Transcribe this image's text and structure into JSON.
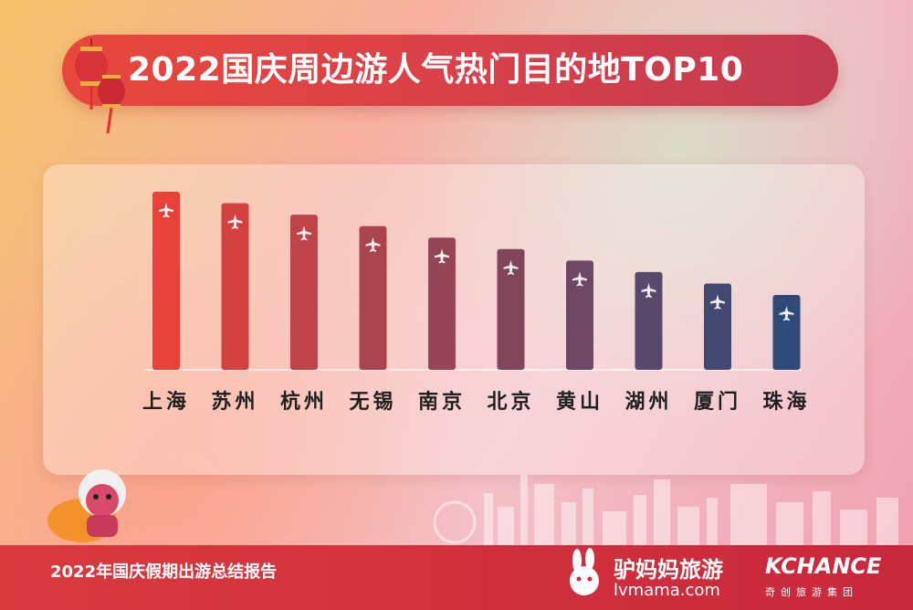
{
  "title": "2022国庆周边游人气热门目的地TOP10",
  "footer": {
    "report_title": "2022年国庆假期出游总结报告",
    "brand1_name": "驴妈妈旅游",
    "brand1_url": "lvmama.com",
    "brand2_name": "KCHANCE",
    "brand2_sub": "奇创旅游集团"
  },
  "colors": {
    "bar_start": "#e8413a",
    "bar_end": "#2f4a78",
    "banner": "#e0443f",
    "footer": "#d12f3d"
  },
  "icons": {
    "bar_icon": "airplane-icon",
    "decoration": "lantern-icon",
    "mascot": "lion-dance-mascot-icon",
    "brand_logo": "rabbit-logo-icon"
  },
  "chart_data": {
    "type": "bar",
    "title": "2022国庆周边游人气热门目的地TOP10",
    "categories": [
      "上海",
      "苏州",
      "杭州",
      "无锡",
      "南京",
      "北京",
      "黄山",
      "湖州",
      "厦门",
      "珠海"
    ],
    "values": [
      10,
      9,
      8,
      7,
      6,
      5,
      4,
      3,
      2,
      1
    ],
    "xlabel": "",
    "ylabel": "",
    "grid": false,
    "legend": "none"
  }
}
